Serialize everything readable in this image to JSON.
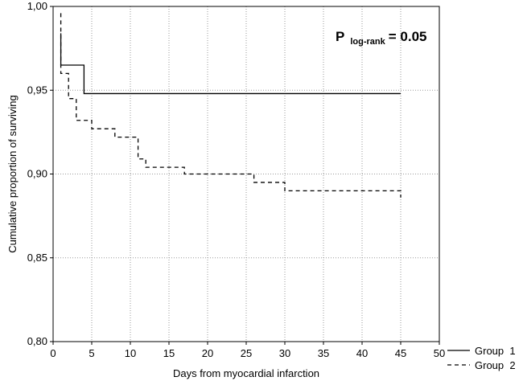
{
  "chart_data": {
    "type": "line",
    "xlabel": "Days from myocardial infarction",
    "ylabel": "Cumulative proportion of surviving",
    "xlim": [
      0,
      50
    ],
    "ylim": [
      0.8,
      1.0
    ],
    "xticks": [
      0,
      5,
      10,
      15,
      20,
      25,
      30,
      35,
      40,
      45,
      50
    ],
    "xtick_labels": [
      "0",
      "5",
      "10",
      "15",
      "20",
      "25",
      "30",
      "35",
      "40",
      "45",
      "50"
    ],
    "yticks": [
      0.8,
      0.85,
      0.9,
      0.95,
      1.0
    ],
    "ytick_labels": [
      "0,80",
      "0,85",
      "0,90",
      "0,95",
      "1,00"
    ],
    "grid": true,
    "legend_position": "bottom-right-outside",
    "annotation": {
      "p_letter": "P",
      "p_subscript": "log-rank",
      "p_value": "= 0.05"
    },
    "series": [
      {
        "name": "Group  1",
        "style": "solid",
        "color": "#000000",
        "points": [
          [
            1,
            0.984
          ],
          [
            1,
            0.965
          ],
          [
            4,
            0.965
          ],
          [
            4,
            0.948
          ],
          [
            45,
            0.948
          ]
        ]
      },
      {
        "name": "Group  2",
        "style": "dashed",
        "color": "#000000",
        "points": [
          [
            1,
            0.996
          ],
          [
            1,
            0.96
          ],
          [
            2,
            0.96
          ],
          [
            2,
            0.945
          ],
          [
            3,
            0.945
          ],
          [
            3,
            0.932
          ],
          [
            5,
            0.932
          ],
          [
            5,
            0.927
          ],
          [
            8,
            0.927
          ],
          [
            8,
            0.922
          ],
          [
            11,
            0.922
          ],
          [
            11,
            0.909
          ],
          [
            12,
            0.909
          ],
          [
            12,
            0.904
          ],
          [
            17,
            0.904
          ],
          [
            17,
            0.9
          ],
          [
            26,
            0.9
          ],
          [
            26,
            0.895
          ],
          [
            30,
            0.895
          ],
          [
            30,
            0.89
          ],
          [
            45,
            0.89
          ],
          [
            45,
            0.886
          ]
        ]
      }
    ]
  }
}
